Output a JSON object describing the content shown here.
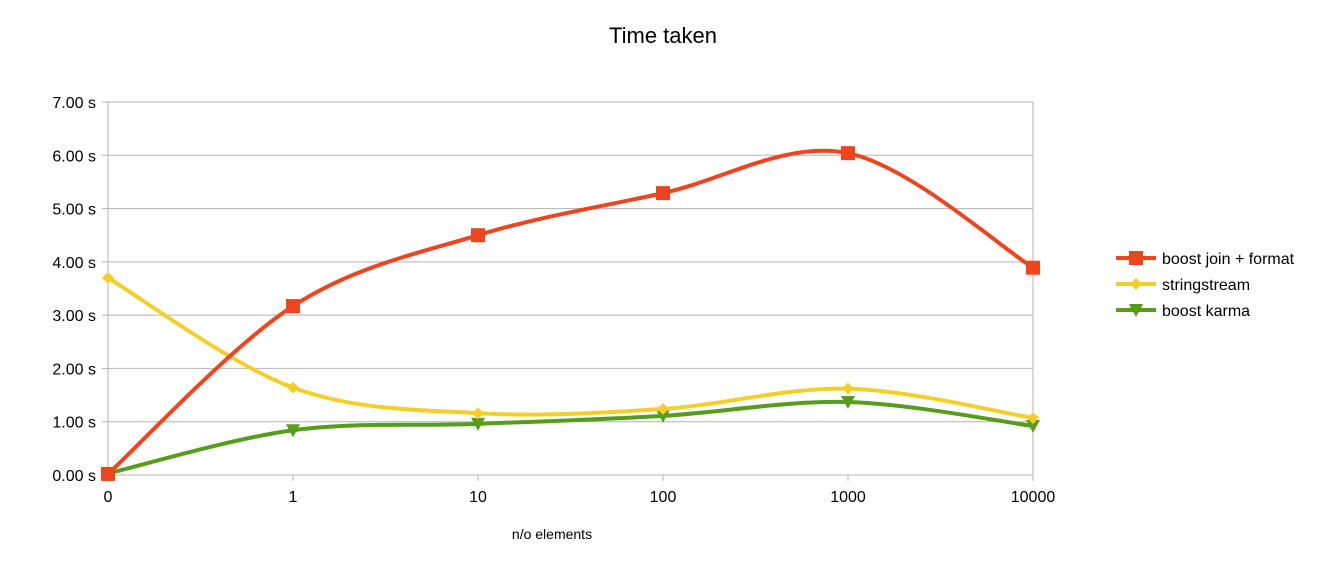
{
  "chart_data": {
    "type": "line",
    "title": "Time taken",
    "xlabel": "n/o elements",
    "ylabel": "",
    "categories": [
      "0",
      "1",
      "10",
      "100",
      "1000",
      "10000"
    ],
    "y_tick_labels": [
      "0.00 s",
      "1.00 s",
      "2.00 s",
      "3.00 s",
      "4.00 s",
      "5.00 s",
      "6.00 s",
      "7.00 s"
    ],
    "ylim": [
      0,
      7
    ],
    "y_unit": "s",
    "grid": true,
    "legend_position": "right",
    "smooth": true,
    "series": [
      {
        "name": "boost join + format",
        "values": [
          0.02,
          3.17,
          4.5,
          5.29,
          6.04,
          3.89
        ],
        "color": "#f0441e",
        "marker": "square"
      },
      {
        "name": "stringstream",
        "values": [
          3.7,
          1.64,
          1.16,
          1.24,
          1.62,
          1.07
        ],
        "color": "#f4cf2a",
        "marker": "diamond"
      },
      {
        "name": "boost karma",
        "values": [
          0.03,
          0.84,
          0.96,
          1.11,
          1.37,
          0.92
        ],
        "color": "#579d1c",
        "marker": "triangle-down"
      }
    ]
  }
}
